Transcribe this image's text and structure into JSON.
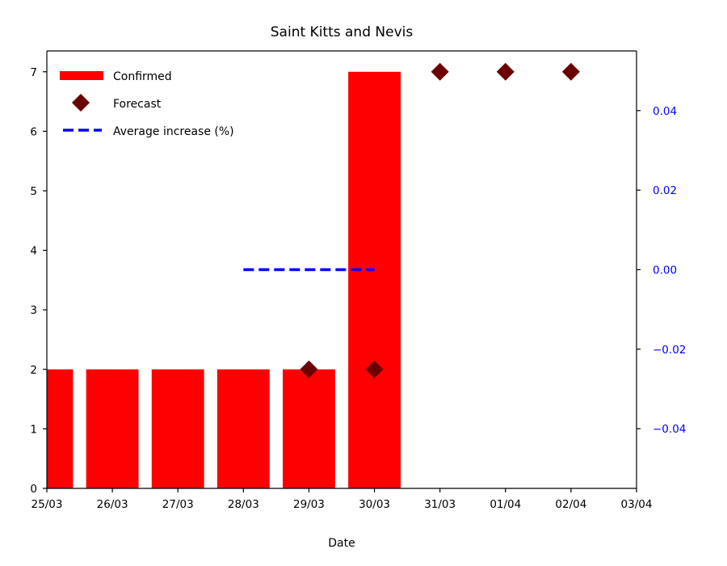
{
  "chart_data": {
    "type": "bar",
    "title": "Saint Kitts and Nevis",
    "xlabel": "Date",
    "ylabel": "",
    "x_ticks": [
      "25/03",
      "26/03",
      "27/03",
      "28/03",
      "29/03",
      "30/03",
      "31/03",
      "01/04",
      "02/04",
      "03/04"
    ],
    "xlim": [
      0,
      9
    ],
    "ylim": [
      0,
      7.35
    ],
    "y_ticks": [
      "0",
      "1",
      "2",
      "3",
      "4",
      "5",
      "6",
      "7"
    ],
    "y2lim": [
      -0.055,
      0.055
    ],
    "y2_ticks": [
      "−0.04",
      "−0.02",
      "0.00",
      "0.02",
      "0.04"
    ],
    "colors": {
      "confirmed": "#ff0000",
      "forecast": "#6b0000",
      "average": "#0000ff",
      "right_axis": "#0000ff"
    },
    "series": [
      {
        "name": "Confirmed",
        "kind": "bar",
        "x": [
          "25/03",
          "26/03",
          "27/03",
          "28/03",
          "29/03",
          "30/03"
        ],
        "values": [
          2,
          2,
          2,
          2,
          2,
          7
        ]
      },
      {
        "name": "Forecast",
        "kind": "scatter",
        "marker": "diamond",
        "x": [
          "29/03",
          "30/03",
          "31/03",
          "01/04",
          "02/04"
        ],
        "values": [
          2,
          2,
          7,
          7,
          7
        ]
      },
      {
        "name": "Average increase (%)",
        "kind": "line",
        "style": "dashed",
        "axis": "right",
        "x": [
          "28/03",
          "30/03"
        ],
        "values": [
          0.0,
          0.0
        ]
      }
    ],
    "legend": [
      "Confirmed",
      "Forecast",
      "Average increase (%)"
    ],
    "legend_position": "top-left",
    "grid": false
  }
}
